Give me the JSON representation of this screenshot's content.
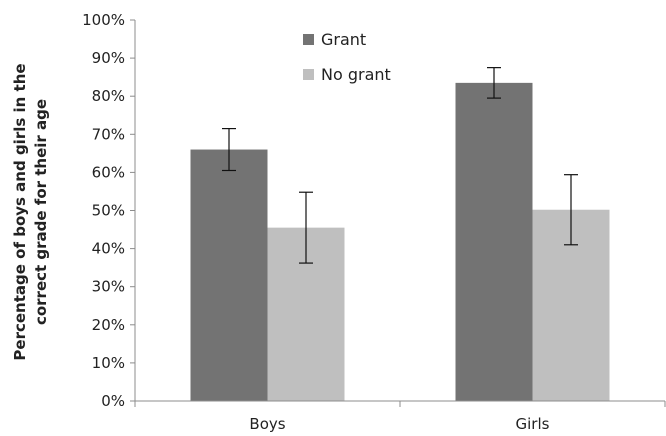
{
  "chart_data": {
    "type": "bar",
    "categories": [
      "Boys",
      "Girls"
    ],
    "series": [
      {
        "name": "Grant",
        "values": [
          66,
          83.5
        ],
        "error": [
          5.5,
          4
        ],
        "color": "#737373"
      },
      {
        "name": "No grant",
        "values": [
          45.5,
          50.2
        ],
        "error": [
          9.3,
          9.2
        ],
        "color": "#bfbfbf"
      }
    ],
    "ylabel_lines": [
      "Percentage of boys and girls in the",
      "correct grade for their age"
    ],
    "ylim": [
      0,
      100
    ],
    "yticks": [
      "0%",
      "10%",
      "20%",
      "30%",
      "40%",
      "50%",
      "60%",
      "70%",
      "80%",
      "90%",
      "100%"
    ],
    "legend_position": "top-center",
    "grid": false
  }
}
